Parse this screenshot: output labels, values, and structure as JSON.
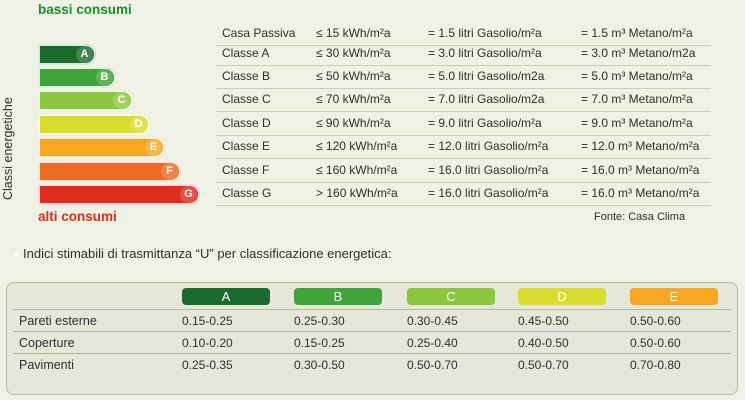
{
  "labels": {
    "good": "bassi consumi",
    "bad": "alti consumi",
    "axis": "Classi energetiche",
    "source": "Fonte: Casa Clima"
  },
  "classes": [
    {
      "letter": "",
      "name": "Casa Passiva",
      "limit": "≤ 15 kWh/m²a",
      "gasolio": "= 1.5 litri Gasolio/m²a",
      "metano": "= 1.5 m³ Metano/m²a",
      "color": ""
    },
    {
      "letter": "A",
      "name": "Classe A",
      "limit": "≤ 30 kWh/m²a",
      "gasolio": "= 3.0 litri Gasolio/m²a",
      "metano": "= 3.0 m³ Metano/m2a",
      "color": "#1b6b2e"
    },
    {
      "letter": "B",
      "name": "Classe B",
      "limit": "≤ 50 kWh/m²a",
      "gasolio": "= 5.0 litri Gasolio/m2a",
      "metano": "= 5.0 m³ Metano/m²a",
      "color": "#3fa43a"
    },
    {
      "letter": "C",
      "name": "Classe C",
      "limit": "≤ 70 kWh/m²a",
      "gasolio": "= 7.0 litri Gasolio/m2a",
      "metano": "= 7.0 m³ Metano/m²a",
      "color": "#8cc63f"
    },
    {
      "letter": "D",
      "name": "Classe D",
      "limit": "≤ 90 kWh/m²a",
      "gasolio": "= 9.0 litri Gasolio/m²a",
      "metano": "= 9.0 m³ Metano/m²a",
      "color": "#d8dd2f"
    },
    {
      "letter": "E",
      "name": "Classe E",
      "limit": "≤ 120 kWh/m²a",
      "gasolio": "= 12.0 litri Gasolio/m²a",
      "metano": "= 12.0 m³ Metano/m²a",
      "color": "#f5a623"
    },
    {
      "letter": "F",
      "name": "Classe F",
      "limit": "≤ 160 kWh/m²a",
      "gasolio": "= 16.0 litri Gasolio/m²a",
      "metano": "= 16.0 m³ Metano/m²a",
      "color": "#ec6a23"
    },
    {
      "letter": "G",
      "name": "Classe G",
      "limit": "> 160 kWh/m²a",
      "gasolio": "= 16.0 litri Gasolio/m²a",
      "metano": "= 16.0 m³ Metano/m²a",
      "color": "#e02b1f"
    }
  ],
  "u_section": {
    "title": "Indici stimabili di trasmittanza “U” per classificazione energetica:",
    "headers": [
      {
        "letter": "A",
        "color": "#1b6b2e"
      },
      {
        "letter": "B",
        "color": "#3fa43a"
      },
      {
        "letter": "C",
        "color": "#8cc63f"
      },
      {
        "letter": "D",
        "color": "#d8dd2f"
      },
      {
        "letter": "E",
        "color": "#f5a623"
      }
    ],
    "rows": [
      {
        "name": "Pareti esterne",
        "values": [
          "0.15-0.25",
          "0.25-0.30",
          "0.30-0.45",
          "0.45-0.50",
          "0.50-0.60"
        ]
      },
      {
        "name": "Coperture",
        "values": [
          "0.10-0.20",
          "0.15-0.25",
          "0.25-0.40",
          "0.40-0.50",
          "0.50-0.60"
        ]
      },
      {
        "name": "Pavimenti",
        "values": [
          "0.25-0.35",
          "0.30-0.50",
          "0.50-0.70",
          "0.50-0.70",
          "0.70-0.80"
        ]
      }
    ]
  }
}
